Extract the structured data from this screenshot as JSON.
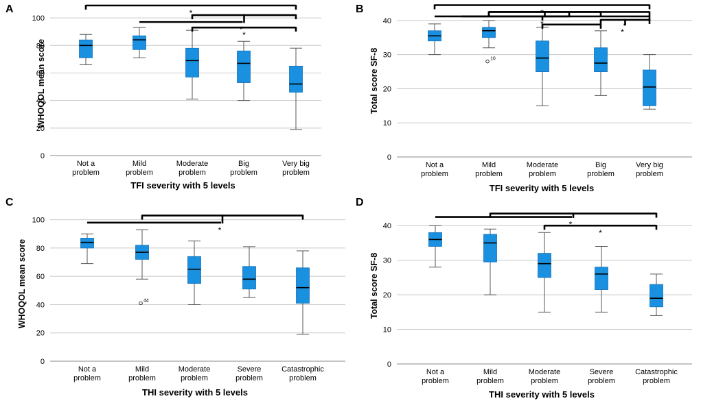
{
  "colors": {
    "box": "#1a90e0",
    "grid": "#c8c8c8",
    "axis": "#888888",
    "ink": "#000000"
  },
  "chart_data": [
    {
      "panel": "A",
      "type": "boxplot",
      "xlabel": "TFI severity with 5 levels",
      "ylabel": "WHOQOL mean score",
      "ylim": [
        0,
        110
      ],
      "yticks": [
        0,
        20,
        40,
        60,
        80,
        100
      ],
      "categories": [
        [
          "Not a",
          "problem"
        ],
        [
          "Mild",
          "problem"
        ],
        [
          "Moderate",
          "problem"
        ],
        [
          "Big",
          "problem"
        ],
        [
          "Very big",
          "problem"
        ]
      ],
      "boxes": [
        {
          "min": 66,
          "q1": 71,
          "median": 80,
          "q3": 84,
          "max": 88
        },
        {
          "min": 71,
          "q1": 77,
          "median": 84,
          "q3": 87,
          "max": 93
        },
        {
          "min": 41,
          "q1": 57,
          "median": 69,
          "q3": 78,
          "max": 91
        },
        {
          "min": 40,
          "q1": 53,
          "median": 67,
          "q3": 76,
          "max": 83
        },
        {
          "min": 19,
          "q1": 46,
          "median": 52,
          "q3": 65,
          "max": 78
        }
      ],
      "outliers": [],
      "brackets": [
        {
          "type": "simple",
          "from": 0,
          "to": 4,
          "y": 109,
          "star": "*"
        },
        {
          "type": "nested",
          "base": 1,
          "left": 2,
          "right": 4,
          "y": 102,
          "ystar": 97,
          "star": "*"
        },
        {
          "type": "simple",
          "from": 2,
          "to": 4,
          "y": 93,
          "star": "*"
        }
      ]
    },
    {
      "panel": "B",
      "type": "boxplot",
      "xlabel": "TFI severity with 5 levels",
      "ylabel": "Total score SF-8",
      "ylim": [
        0,
        45
      ],
      "yticks": [
        0,
        10,
        20,
        30,
        40
      ],
      "categories": [
        [
          "Not a",
          "problem"
        ],
        [
          "Mild",
          "problem"
        ],
        [
          "Moderate",
          "problem"
        ],
        [
          "Big",
          "problem"
        ],
        [
          "Very big",
          "problem"
        ]
      ],
      "boxes": [
        {
          "min": 30,
          "q1": 34,
          "median": 35.5,
          "q3": 37,
          "max": 39
        },
        {
          "min": 32,
          "q1": 35,
          "median": 37,
          "q3": 38,
          "max": 40
        },
        {
          "min": 15,
          "q1": 25,
          "median": 29,
          "q3": 34,
          "max": 38
        },
        {
          "min": 18,
          "q1": 25,
          "median": 27.5,
          "q3": 32,
          "max": 37
        },
        {
          "min": 14,
          "q1": 15,
          "median": 20.5,
          "q3": 25.5,
          "max": 30
        }
      ],
      "outliers": [
        {
          "category": 1,
          "value": 28,
          "label": "10"
        }
      ],
      "brackets": [
        {
          "type": "simple",
          "from": 0,
          "to": 4,
          "y": 44.5,
          "star": "*"
        },
        {
          "type": "nested",
          "base": 0.5,
          "left": 1,
          "right": 4,
          "y": 42.5,
          "ystar": 41.2,
          "star": ""
        },
        {
          "type": "nested",
          "base": 0,
          "left": 1,
          "right": 3,
          "y": 42.5,
          "ystar": 41.2,
          "star": "*"
        },
        {
          "type": "simple",
          "from": 2,
          "to": 4,
          "y": 41.2,
          "star": ""
        },
        {
          "type": "nested",
          "base": 3.5,
          "left": 3,
          "right": 4,
          "y": 40.2,
          "ystar": 38.8,
          "star": "*"
        },
        {
          "type": "simple",
          "from": 2,
          "to": 3,
          "y": 38.8,
          "star": ""
        }
      ]
    },
    {
      "panel": "C",
      "type": "boxplot",
      "xlabel": "THI severity with 5 levels",
      "ylabel": "WHOQOL mean score",
      "ylim": [
        0,
        110
      ],
      "yticks": [
        0,
        20,
        40,
        60,
        80,
        100
      ],
      "categories": [
        [
          "Not a",
          "problem"
        ],
        [
          "Mild",
          "problem"
        ],
        [
          "Moderate",
          "problem"
        ],
        [
          "Severe",
          "problem"
        ],
        [
          "Catastrophic",
          "problem"
        ]
      ],
      "boxes": [
        {
          "min": 69,
          "q1": 80,
          "median": 84,
          "q3": 87,
          "max": 90
        },
        {
          "min": 58,
          "q1": 72,
          "median": 77,
          "q3": 82,
          "max": 93
        },
        {
          "min": 40,
          "q1": 55,
          "median": 65,
          "q3": 74,
          "max": 85
        },
        {
          "min": 45,
          "q1": 51,
          "median": 58,
          "q3": 67,
          "max": 81
        },
        {
          "min": 19,
          "q1": 41,
          "median": 52,
          "q3": 66,
          "max": 78
        }
      ],
      "outliers": [
        {
          "category": 1,
          "value": 41,
          "label": "44"
        }
      ],
      "brackets": [
        {
          "type": "nested",
          "base": 0,
          "left": 1,
          "right": 4,
          "y": 103,
          "ystar": 98,
          "star": "*"
        }
      ]
    },
    {
      "panel": "D",
      "type": "boxplot",
      "xlabel": "THI severity with 5 levels",
      "ylabel": "Total score SF-8",
      "ylim": [
        0,
        45
      ],
      "yticks": [
        0,
        10,
        20,
        30,
        40
      ],
      "categories": [
        [
          "Not a",
          "problem"
        ],
        [
          "Mild",
          "problem"
        ],
        [
          "Moderate",
          "problem"
        ],
        [
          "Severe",
          "problem"
        ],
        [
          "Catastrophic",
          "problem"
        ]
      ],
      "boxes": [
        {
          "min": 28,
          "q1": 34,
          "median": 36,
          "q3": 38,
          "max": 40
        },
        {
          "min": 20,
          "q1": 29.5,
          "median": 35,
          "q3": 37.5,
          "max": 39
        },
        {
          "min": 15,
          "q1": 25,
          "median": 29,
          "q3": 32,
          "max": 38
        },
        {
          "min": 15,
          "q1": 21.5,
          "median": 26,
          "q3": 28,
          "max": 34
        },
        {
          "min": 14,
          "q1": 16.5,
          "median": 19,
          "q3": 23,
          "max": 26
        }
      ],
      "outliers": [],
      "brackets": [
        {
          "type": "nested",
          "base": 0,
          "left": 1,
          "right": 4,
          "y": 43.5,
          "ystar": 42.5,
          "star": "*"
        },
        {
          "type": "simple",
          "from": 2,
          "to": 4,
          "y": 40,
          "star": "*"
        }
      ]
    }
  ]
}
